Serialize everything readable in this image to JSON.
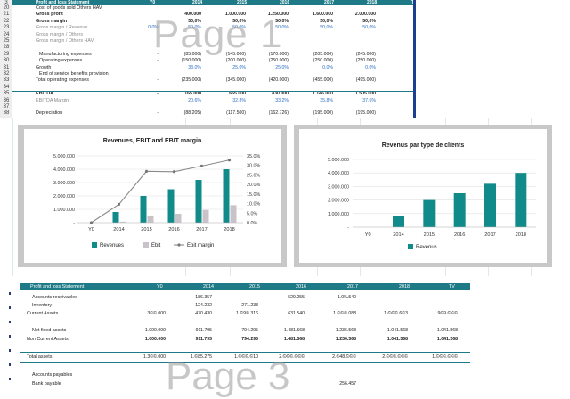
{
  "top_sheet": {
    "header": {
      "row_no": "3",
      "title": "Profit and loss Statement",
      "cols": [
        "Y0",
        "2014",
        "2015",
        "2016",
        "2017",
        "2018",
        "TV"
      ]
    },
    "rows": [
      {
        "no": "20",
        "label": "Cost of goods sold Others HAV",
        "style": "",
        "vals": [
          "",
          "",
          "",
          "",
          "",
          "",
          ""
        ]
      },
      {
        "no": "21",
        "label": "Gross profit",
        "style": "bold",
        "vals": [
          "",
          "400.000",
          "1.000.000",
          "1.250.000",
          "1.600.000",
          "2.000.000",
          ""
        ]
      },
      {
        "no": "22",
        "label": "Gross margin",
        "style": "bold",
        "vals": [
          "",
          "50,0%",
          "50,0%",
          "50,0%",
          "50,0%",
          "50,0%",
          ""
        ]
      },
      {
        "no": "23",
        "label": "Gross margin / Revenue",
        "style": "grey",
        "vals": [
          "0,0%",
          "50,0%",
          "50,0%",
          "50,0%",
          "50,0%",
          "50,0%",
          ""
        ]
      },
      {
        "no": "24",
        "label": "Gross margin / Others",
        "style": "grey",
        "vals": [
          "",
          "",
          "",
          "",
          "",
          "",
          ""
        ]
      },
      {
        "no": "25",
        "label": "Gross margin / Others HAV",
        "style": "grey",
        "vals": [
          "",
          "",
          "",
          "",
          "",
          "",
          ""
        ]
      },
      {
        "no": "28",
        "label": "",
        "style": "",
        "vals": [
          "",
          "",
          "",
          "",
          "",
          "",
          ""
        ]
      },
      {
        "no": "29",
        "label": "Manufacturing expenses",
        "style": "indent",
        "vals": [
          "-",
          "(85.000)",
          "(145.000)",
          "(170.000)",
          "(205.000)",
          "(245.000)",
          ""
        ]
      },
      {
        "no": "30",
        "label": "Operating expenses",
        "style": "indent",
        "vals": [
          "-",
          "(150.000)",
          "(200.000)",
          "(250.000)",
          "(250.000)",
          "(250.000)",
          ""
        ]
      },
      {
        "no": "31",
        "label": "Growth",
        "style": "",
        "vals": [
          "",
          "33,0%",
          "25,0%",
          "25,0%",
          "0,0%",
          "0,0%",
          ""
        ]
      },
      {
        "no": "32",
        "label": "End of service benefits provision",
        "style": "indent",
        "vals": [
          "",
          "",
          "",
          "",
          "",
          "",
          ""
        ]
      },
      {
        "no": "33",
        "label": "Total operating expenses",
        "style": "",
        "vals": [
          "-",
          "(235.000)",
          "(345.000)",
          "(420.000)",
          "(455.000)",
          "(495.000)",
          ""
        ]
      },
      {
        "no": "34",
        "label": "",
        "style": "",
        "vals": [
          "",
          "",
          "",
          "",
          "",
          "",
          ""
        ]
      },
      {
        "no": "35",
        "label": "EBITDA",
        "style": "bold",
        "vals": [
          "-",
          "165.000",
          "655.000",
          "830.000",
          "1.145.000",
          "1.505.000",
          ""
        ]
      },
      {
        "no": "36",
        "label": "EBITDA Margin",
        "style": "grey",
        "vals": [
          "",
          "20,6%",
          "32,8%",
          "33,2%",
          "35,8%",
          "37,6%",
          ""
        ]
      },
      {
        "no": "37",
        "label": "",
        "style": "",
        "vals": [
          "",
          "",
          "",
          "",
          "",
          "",
          ""
        ]
      },
      {
        "no": "38",
        "label": "Depreciation",
        "style": "",
        "vals": [
          "-",
          "(88.205)",
          "(117.500)",
          "(162.726)",
          "(195.000)",
          "(195.000)",
          ""
        ]
      },
      {
        "no": "39",
        "label": "EBIT",
        "style": "bold",
        "vals": [
          "-",
          "76.795",
          "537.500",
          "667.274",
          "950.000",
          "1.310.000",
          ""
        ]
      }
    ],
    "watermark": "Page 1"
  },
  "chart1": {
    "title": "Revenues, EBIT and EBIT margin",
    "legend": [
      "Revenues",
      "Ebit",
      "Ebit margin"
    ],
    "colors": {
      "revenues": "#118a8a",
      "ebit": "#c9c3c9",
      "margin": "#8a8a8a"
    }
  },
  "chart2": {
    "title": "Revenus par type de clients",
    "legend": [
      "Revenus"
    ],
    "colors": {
      "revenus": "#118a8a"
    }
  },
  "chart_data": [
    {
      "type": "bar",
      "title": "Revenues, EBIT and EBIT margin",
      "categories": [
        "Y0",
        "2014",
        "2015",
        "2016",
        "2017",
        "2018"
      ],
      "series": [
        {
          "name": "Revenues",
          "values": [
            0,
            800000,
            2000000,
            2500000,
            3200000,
            4000000
          ]
        },
        {
          "name": "Ebit",
          "values": [
            0,
            76795,
            537500,
            667274,
            950000,
            1310000
          ]
        },
        {
          "name": "Ebit margin",
          "type": "line",
          "axis": "right",
          "values": [
            0,
            9.6,
            26.9,
            26.7,
            29.7,
            32.8
          ]
        }
      ],
      "ylim": [
        0,
        5000000
      ],
      "yticks": [
        "-",
        "1.000.000",
        "2.000.000",
        "3.000.000",
        "4.000.000",
        "5.000.000"
      ],
      "y2lim": [
        0,
        35
      ],
      "y2ticks": [
        "0.0%",
        "5.0%",
        "10.0%",
        "15.0%",
        "20.0%",
        "25.0%",
        "30.0%",
        "35.0%"
      ],
      "legend_position": "bottom",
      "grid": true
    },
    {
      "type": "bar",
      "title": "Revenus par type de clients",
      "categories": [
        "Y0",
        "2014",
        "2015",
        "2016",
        "2017",
        "2018"
      ],
      "series": [
        {
          "name": "Revenus",
          "values": [
            0,
            800000,
            2000000,
            2500000,
            3200000,
            4000000
          ]
        }
      ],
      "ylim": [
        0,
        5000000
      ],
      "yticks": [
        "-",
        "1.000.000",
        "2.000.000",
        "3.000.000",
        "4.000.000",
        "5.000.000"
      ],
      "legend_position": "bottom",
      "grid": true
    }
  ],
  "bottom_sheet": {
    "header": {
      "title": "Profit and loss Statement",
      "cols": [
        "Y0",
        "2014",
        "2015",
        "2016",
        "2017",
        "2018",
        "TV"
      ]
    },
    "rows": [
      {
        "label": "Accounts receivables",
        "vals": [
          "",
          "186.357",
          "",
          "529.255",
          "1.0‰540",
          "",
          ""
        ]
      },
      {
        "label": "Inventory",
        "vals": [
          "",
          "124.232",
          "271.233",
          "",
          "",
          "",
          ""
        ]
      },
      {
        "label": "Current Assets",
        "vals": [
          "3©©.000",
          "470.430",
          "1.©9©.316",
          "631.540",
          "1.©©©.088",
          "1.©©©.6©3",
          "9©9.©©©"
        ]
      },
      {
        "label": "",
        "vals": [
          "",
          "",
          "",
          "",
          "",
          "",
          ""
        ]
      },
      {
        "label": "Net fixed assets",
        "vals": [
          "1.000.000",
          "911.795",
          "794.295",
          "1.481.568",
          "1.236.568",
          "1.041.568",
          "1.041.568"
        ]
      },
      {
        "label": "Non Current Assets",
        "vals": [
          "1.000.000",
          "911.795",
          "794.295",
          "1.481.568",
          "1.236.568",
          "1.041.568",
          "1.041.568"
        ]
      },
      {
        "label": "",
        "vals": [
          "",
          "",
          "",
          "",
          "",
          "",
          ""
        ]
      },
      {
        "label": "Total assets",
        "vals": [
          "1.3©©.000",
          "1.©85.275",
          "1.©©©.©10",
          "2.©©©.©©©",
          "2.©48.©©©",
          "2.©©©.©©©",
          "1.©©©.©©©"
        ]
      },
      {
        "label": "",
        "vals": [
          "",
          "",
          "",
          "",
          "",
          "",
          ""
        ]
      },
      {
        "label": "Accounts payables",
        "vals": [
          "",
          "",
          "",
          "",
          "",
          "",
          ""
        ]
      },
      {
        "label": "Bank payable",
        "vals": [
          "",
          "",
          "",
          "",
          "256.457",
          "",
          ""
        ]
      }
    ],
    "watermark": "Page 3"
  }
}
